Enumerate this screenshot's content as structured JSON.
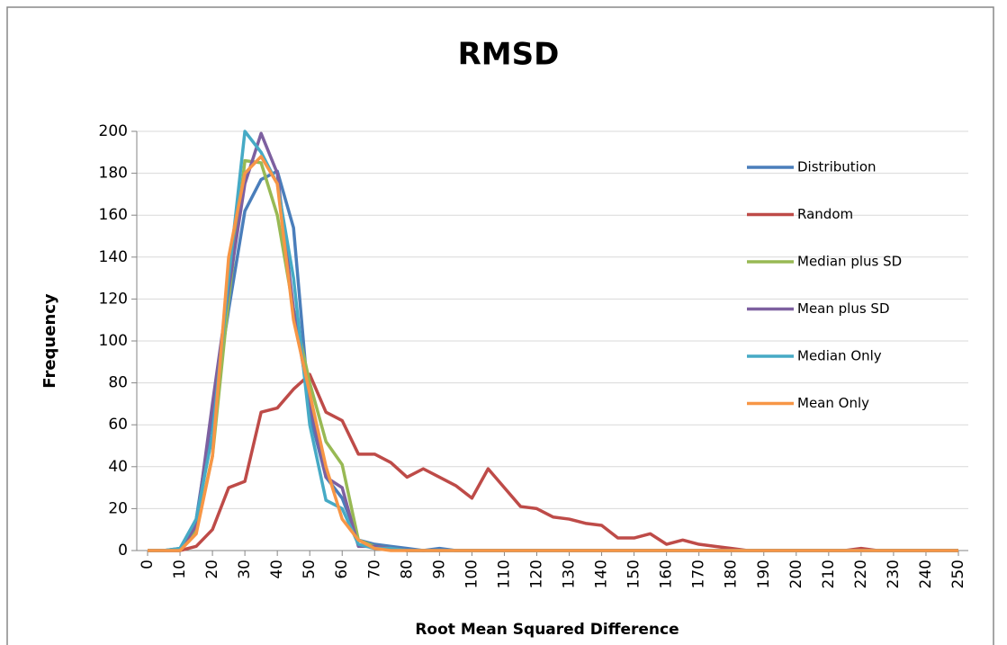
{
  "chart_data": {
    "type": "line",
    "title": "RMSD",
    "x_label": "Root Mean Squared Difference",
    "y_label": "Frequency",
    "x": [
      0,
      5,
      10,
      15,
      20,
      25,
      30,
      35,
      40,
      45,
      50,
      55,
      60,
      65,
      70,
      75,
      80,
      85,
      90,
      95,
      100,
      105,
      110,
      115,
      120,
      125,
      130,
      135,
      140,
      145,
      150,
      155,
      160,
      165,
      170,
      175,
      180,
      185,
      190,
      195,
      200,
      205,
      210,
      215,
      220,
      225,
      230,
      235,
      240,
      245,
      250
    ],
    "xlim": [
      0,
      250
    ],
    "xticks": [
      0,
      10,
      20,
      30,
      40,
      50,
      60,
      70,
      80,
      90,
      100,
      110,
      120,
      130,
      140,
      150,
      160,
      170,
      180,
      190,
      200,
      210,
      220,
      230,
      240,
      250
    ],
    "ylim": [
      0,
      200
    ],
    "yticks": [
      0,
      20,
      40,
      60,
      80,
      100,
      120,
      140,
      160,
      180,
      200
    ],
    "grid": true,
    "legend": "right",
    "series": [
      {
        "name": "Distribution",
        "color": "#4a7ebb",
        "values": [
          0,
          0,
          1,
          15,
          65,
          115,
          162,
          177,
          181,
          154,
          65,
          35,
          25,
          5,
          3,
          2,
          1,
          0,
          1,
          0,
          0,
          0,
          0,
          0,
          0,
          0,
          0,
          0,
          0,
          0,
          0,
          0,
          0,
          0,
          0,
          0,
          0,
          0,
          0,
          0,
          0,
          0,
          0,
          0,
          0,
          0,
          0,
          0,
          0,
          0,
          0
        ]
      },
      {
        "name": "Random",
        "color": "#be4b48",
        "values": [
          0,
          0,
          0,
          2,
          10,
          30,
          33,
          66,
          68,
          77,
          84,
          66,
          62,
          46,
          46,
          42,
          35,
          39,
          35,
          31,
          25,
          39,
          30,
          21,
          20,
          16,
          15,
          13,
          12,
          6,
          6,
          8,
          3,
          5,
          3,
          2,
          1,
          0,
          0,
          0,
          0,
          0,
          0,
          0,
          1,
          0,
          0,
          0,
          0,
          0,
          0
        ]
      },
      {
        "name": "Median plus SD",
        "color": "#98b954",
        "values": [
          0,
          0,
          0,
          10,
          45,
          120,
          186,
          185,
          160,
          115,
          80,
          52,
          41,
          5,
          2,
          1,
          0,
          0,
          0,
          0,
          0,
          0,
          0,
          0,
          0,
          0,
          0,
          0,
          0,
          0,
          0,
          0,
          0,
          0,
          0,
          0,
          0,
          0,
          0,
          0,
          0,
          0,
          0,
          0,
          0,
          0,
          0,
          0,
          0,
          0,
          0
        ]
      },
      {
        "name": "Mean plus SD",
        "color": "#7d60a0",
        "values": [
          0,
          0,
          0,
          12,
          70,
          125,
          175,
          199,
          180,
          115,
          70,
          35,
          30,
          2,
          2,
          1,
          0,
          0,
          0,
          0,
          0,
          0,
          0,
          0,
          0,
          0,
          0,
          0,
          0,
          0,
          0,
          0,
          0,
          0,
          0,
          0,
          0,
          0,
          0,
          0,
          0,
          0,
          0,
          0,
          0,
          0,
          0,
          0,
          0,
          0,
          0
        ]
      },
      {
        "name": "Median Only",
        "color": "#46aac5",
        "values": [
          0,
          0,
          1,
          15,
          55,
          130,
          200,
          190,
          175,
          130,
          60,
          24,
          20,
          3,
          1,
          1,
          0,
          0,
          0,
          0,
          0,
          0,
          0,
          0,
          0,
          0,
          0,
          0,
          0,
          0,
          0,
          0,
          0,
          0,
          0,
          0,
          0,
          0,
          0,
          0,
          0,
          0,
          0,
          0,
          0,
          0,
          0,
          0,
          0,
          0,
          0
        ]
      },
      {
        "name": "Mean Only",
        "color": "#f79646",
        "values": [
          0,
          0,
          0,
          8,
          45,
          140,
          180,
          188,
          175,
          110,
          75,
          40,
          15,
          5,
          1,
          0,
          0,
          0,
          0,
          0,
          0,
          0,
          0,
          0,
          0,
          0,
          0,
          0,
          0,
          0,
          0,
          0,
          0,
          0,
          0,
          0,
          0,
          0,
          0,
          0,
          0,
          0,
          0,
          0,
          0,
          0,
          0,
          0,
          0,
          0,
          0
        ]
      }
    ]
  }
}
